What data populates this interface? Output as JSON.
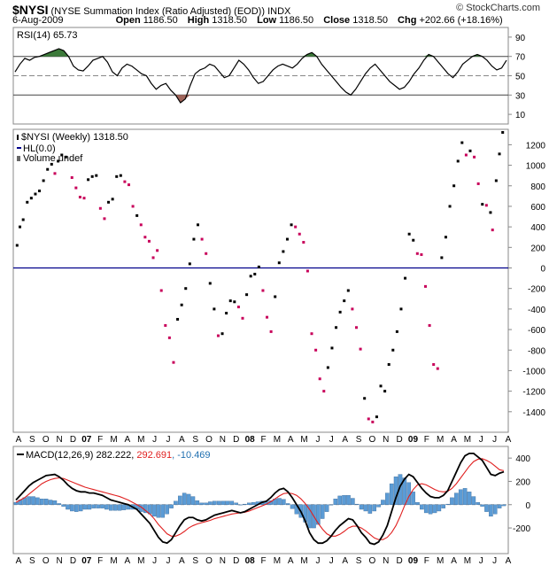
{
  "header": {
    "symbol": "$NYSI",
    "description": "(NYSE Summation Index (Ratio Adjusted) (EOD))",
    "exchange": "INDX",
    "date": "6-Aug-2009",
    "open_label": "Open",
    "open": "1186.50",
    "high_label": "High",
    "high": "1318.50",
    "low_label": "Low",
    "low": "1186.50",
    "close_label": "Close",
    "close": "1318.50",
    "chg_label": "Chg",
    "chg": "+202.66 (+18.16%)",
    "credit": "© StockCharts.com"
  },
  "chart_data": [
    {
      "type": "line",
      "name": "RSI",
      "label": "RSI(14)",
      "value": "65.73",
      "yticks": [
        10,
        30,
        50,
        70,
        90
      ],
      "ylim": [
        0,
        100
      ],
      "levels": [
        30,
        50,
        70
      ],
      "values": [
        54,
        62,
        68,
        66,
        69,
        70,
        72,
        74,
        76,
        78,
        76,
        70,
        60,
        56,
        55,
        60,
        66,
        68,
        70,
        64,
        54,
        50,
        58,
        62,
        60,
        56,
        52,
        50,
        42,
        36,
        40,
        42,
        35,
        30,
        22,
        26,
        40,
        52,
        56,
        58,
        62,
        60,
        54,
        48,
        50,
        58,
        66,
        62,
        56,
        48,
        42,
        44,
        50,
        56,
        60,
        62,
        60,
        58,
        62,
        68,
        72,
        74,
        70,
        62,
        56,
        50,
        44,
        38,
        33,
        30,
        36,
        44,
        52,
        58,
        62,
        56,
        50,
        44,
        40,
        36,
        38,
        44,
        52,
        58,
        66,
        72,
        70,
        64,
        58,
        52,
        48,
        54,
        62,
        66,
        70,
        72,
        70,
        66,
        60,
        56,
        58,
        66
      ]
    },
    {
      "type": "scatter",
      "name": "NYSI",
      "label": "$NYSI (Weekly)",
      "value": "1318.50",
      "hl_label": "HL(0.0)",
      "volume_label": "Volume undef",
      "yticks": [
        -1400,
        -1200,
        -1000,
        -800,
        -600,
        -400,
        -200,
        0,
        200,
        400,
        600,
        800,
        1000,
        1200
      ],
      "ylim": [
        -1600,
        1350
      ],
      "x_labels": [
        "A",
        "S",
        "O",
        "N",
        "D",
        "07",
        "F",
        "M",
        "A",
        "M",
        "J",
        "J",
        "A",
        "S",
        "O",
        "N",
        "D",
        "08",
        "F",
        "M",
        "A",
        "M",
        "J",
        "J",
        "A",
        "S",
        "O",
        "N",
        "D",
        "09",
        "F",
        "M",
        "A",
        "M",
        "J",
        "J",
        "A"
      ],
      "points": [
        [
          0.5,
          220,
          "b"
        ],
        [
          1.2,
          400,
          "b"
        ],
        [
          2,
          470,
          "b"
        ],
        [
          3,
          640,
          "b"
        ],
        [
          4,
          680,
          "b"
        ],
        [
          5,
          720,
          "b"
        ],
        [
          6,
          750,
          "b"
        ],
        [
          7,
          850,
          "b"
        ],
        [
          8,
          960,
          "b"
        ],
        [
          9,
          1010,
          "b"
        ],
        [
          9.8,
          920,
          "r"
        ],
        [
          10.6,
          1040,
          "b"
        ],
        [
          11.5,
          1100,
          "b"
        ],
        [
          12.5,
          1080,
          "b"
        ],
        [
          14,
          880,
          "r"
        ],
        [
          15,
          780,
          "r"
        ],
        [
          16,
          690,
          "r"
        ],
        [
          17,
          680,
          "r"
        ],
        [
          18,
          860,
          "b"
        ],
        [
          19,
          890,
          "b"
        ],
        [
          20,
          900,
          "b"
        ],
        [
          21,
          580,
          "r"
        ],
        [
          22,
          480,
          "r"
        ],
        [
          23,
          640,
          "b"
        ],
        [
          24,
          670,
          "b"
        ],
        [
          25,
          890,
          "b"
        ],
        [
          26,
          900,
          "b"
        ],
        [
          27,
          840,
          "r"
        ],
        [
          28,
          810,
          "r"
        ],
        [
          29,
          600,
          "r"
        ],
        [
          30,
          510,
          "b"
        ],
        [
          31,
          420,
          "r"
        ],
        [
          32,
          300,
          "r"
        ],
        [
          33,
          260,
          "r"
        ],
        [
          34,
          100,
          "r"
        ],
        [
          35,
          170,
          "r"
        ],
        [
          36,
          -220,
          "r"
        ],
        [
          37,
          -560,
          "r"
        ],
        [
          38,
          -680,
          "r"
        ],
        [
          39,
          -920,
          "r"
        ],
        [
          40,
          -500,
          "b"
        ],
        [
          41,
          -360,
          "b"
        ],
        [
          42,
          -200,
          "b"
        ],
        [
          43,
          40,
          "b"
        ],
        [
          44,
          280,
          "b"
        ],
        [
          45,
          420,
          "b"
        ],
        [
          46,
          280,
          "r"
        ],
        [
          47,
          140,
          "r"
        ],
        [
          48,
          -150,
          "b"
        ],
        [
          49,
          -400,
          "b"
        ],
        [
          50,
          -660,
          "r"
        ],
        [
          51,
          -640,
          "b"
        ],
        [
          52,
          -440,
          "b"
        ],
        [
          53,
          -320,
          "b"
        ],
        [
          54,
          -330,
          "b"
        ],
        [
          55,
          -380,
          "r"
        ],
        [
          56,
          -490,
          "r"
        ],
        [
          57,
          -260,
          "b"
        ],
        [
          58,
          -80,
          "b"
        ],
        [
          59,
          -60,
          "b"
        ],
        [
          60,
          10,
          "b"
        ],
        [
          61,
          -220,
          "r"
        ],
        [
          62,
          -480,
          "r"
        ],
        [
          63,
          -620,
          "r"
        ],
        [
          64,
          -280,
          "b"
        ],
        [
          65,
          50,
          "b"
        ],
        [
          66,
          160,
          "b"
        ],
        [
          67,
          280,
          "b"
        ],
        [
          68,
          420,
          "b"
        ],
        [
          69,
          400,
          "r"
        ],
        [
          70,
          330,
          "r"
        ],
        [
          71,
          250,
          "r"
        ],
        [
          72,
          -30,
          "r"
        ],
        [
          73,
          -640,
          "r"
        ],
        [
          74,
          -800,
          "r"
        ],
        [
          75,
          -1080,
          "r"
        ],
        [
          76,
          -1200,
          "r"
        ],
        [
          77,
          -970,
          "b"
        ],
        [
          78,
          -780,
          "b"
        ],
        [
          79,
          -580,
          "b"
        ],
        [
          80,
          -430,
          "b"
        ],
        [
          81,
          -320,
          "b"
        ],
        [
          82,
          -220,
          "b"
        ],
        [
          83,
          -400,
          "r"
        ],
        [
          84,
          -580,
          "r"
        ],
        [
          85,
          -790,
          "r"
        ],
        [
          86,
          -1270,
          "b"
        ],
        [
          87,
          -1470,
          "r"
        ],
        [
          88,
          -1500,
          "r"
        ],
        [
          89,
          -1450,
          "b"
        ],
        [
          90,
          -1150,
          "b"
        ],
        [
          91,
          -1200,
          "b"
        ],
        [
          92,
          -940,
          "b"
        ],
        [
          93,
          -800,
          "b"
        ],
        [
          94,
          -620,
          "b"
        ],
        [
          95,
          -400,
          "b"
        ],
        [
          96,
          -100,
          "b"
        ],
        [
          97,
          330,
          "b"
        ],
        [
          98,
          270,
          "b"
        ],
        [
          99,
          140,
          "r"
        ],
        [
          100,
          130,
          "r"
        ],
        [
          101,
          -180,
          "r"
        ],
        [
          102,
          -560,
          "r"
        ],
        [
          103,
          -940,
          "r"
        ],
        [
          104,
          -980,
          "r"
        ],
        [
          105,
          100,
          "b"
        ],
        [
          106,
          300,
          "b"
        ],
        [
          107,
          600,
          "b"
        ],
        [
          108,
          800,
          "b"
        ],
        [
          109,
          1040,
          "b"
        ],
        [
          110,
          1220,
          "b"
        ],
        [
          111,
          1100,
          "r"
        ],
        [
          112,
          1140,
          "b"
        ],
        [
          113,
          1080,
          "r"
        ],
        [
          114,
          820,
          "r"
        ],
        [
          115,
          620,
          "b"
        ],
        [
          116,
          610,
          "r"
        ],
        [
          117,
          540,
          "b"
        ],
        [
          117.5,
          370,
          "r"
        ],
        [
          118.4,
          850,
          "b"
        ],
        [
          119.2,
          1110,
          "b"
        ],
        [
          120,
          1320,
          "b"
        ]
      ]
    },
    {
      "type": "line",
      "name": "MACD",
      "label": "MACD(12,26,9)",
      "macd": "282.222",
      "signal": "292.691",
      "hist": "-10.469",
      "yticks": [
        -200,
        0,
        200,
        400
      ],
      "ylim": [
        -420,
        500
      ],
      "macd_values": [
        40,
        80,
        120,
        160,
        190,
        210,
        230,
        250,
        255,
        260,
        240,
        210,
        170,
        140,
        120,
        110,
        110,
        100,
        100,
        90,
        80,
        60,
        40,
        30,
        20,
        10,
        0,
        -20,
        -40,
        -80,
        -120,
        -160,
        -220,
        -280,
        -320,
        -330,
        -300,
        -240,
        -180,
        -130,
        -110,
        -110,
        -130,
        -140,
        -130,
        -110,
        -90,
        -80,
        -70,
        -60,
        -50,
        -60,
        -70,
        -60,
        -40,
        -20,
        0,
        20,
        30,
        60,
        100,
        130,
        140,
        110,
        60,
        0,
        -60,
        -140,
        -240,
        -300,
        -330,
        -330,
        -310,
        -270,
        -220,
        -180,
        -150,
        -120,
        -130,
        -180,
        -240,
        -280,
        -330,
        -340,
        -320,
        -260,
        -180,
        -60,
        60,
        160,
        220,
        260,
        240,
        190,
        140,
        100,
        70,
        60,
        60,
        80,
        120,
        200,
        280,
        360,
        420,
        440,
        440,
        410,
        380,
        320,
        260,
        250,
        270,
        282
      ],
      "signal_values": [
        20,
        40,
        60,
        90,
        120,
        150,
        180,
        200,
        215,
        225,
        230,
        225,
        210,
        195,
        180,
        165,
        150,
        140,
        130,
        120,
        110,
        100,
        90,
        80,
        70,
        55,
        40,
        20,
        0,
        -20,
        -50,
        -80,
        -120,
        -170,
        -210,
        -250,
        -270,
        -270,
        -255,
        -230,
        -200,
        -180,
        -165,
        -155,
        -145,
        -135,
        -120,
        -110,
        -100,
        -90,
        -80,
        -75,
        -70,
        -65,
        -55,
        -40,
        -25,
        -10,
        5,
        25,
        50,
        75,
        95,
        100,
        95,
        80,
        50,
        10,
        -40,
        -100,
        -160,
        -210,
        -250,
        -270,
        -270,
        -255,
        -230,
        -200,
        -185,
        -185,
        -200,
        -225,
        -255,
        -285,
        -300,
        -300,
        -280,
        -240,
        -180,
        -100,
        -10,
        70,
        130,
        170,
        180,
        170,
        150,
        130,
        115,
        110,
        115,
        140,
        180,
        230,
        280,
        330,
        370,
        390,
        395,
        380,
        360,
        330,
        300,
        292
      ]
    }
  ],
  "time_axis": [
    "A",
    "S",
    "O",
    "N",
    "D",
    "07",
    "F",
    "M",
    "A",
    "M",
    "J",
    "J",
    "A",
    "S",
    "O",
    "N",
    "D",
    "08",
    "F",
    "M",
    "A",
    "M",
    "J",
    "J",
    "A",
    "S",
    "O",
    "N",
    "D",
    "09",
    "F",
    "M",
    "A",
    "M",
    "J",
    "J",
    "A"
  ]
}
